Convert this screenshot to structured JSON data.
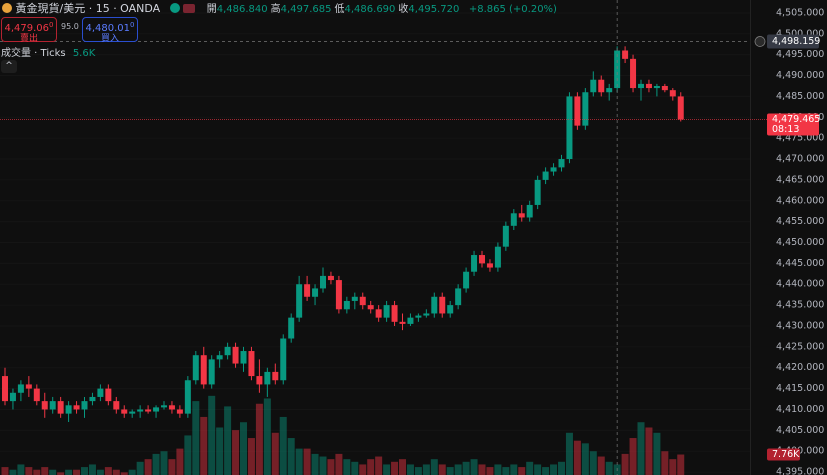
{
  "header": {
    "symbol": "黃金現貨/美元 · 15 · OANDA",
    "ohlc": [
      {
        "label": "開",
        "value": "4,486.840"
      },
      {
        "label": "高",
        "value": "4,497.685"
      },
      {
        "label": "低",
        "value": "4,486.690"
      },
      {
        "label": "收",
        "value": "4,495.720"
      }
    ],
    "change": "+8.865 (+0.20%)",
    "sell": {
      "price": "4,479.06",
      "sup": "0",
      "label": "賣出"
    },
    "spread": "95.0",
    "buy": {
      "price": "4,480.01",
      "sup": "0",
      "label": "買入"
    },
    "volume_title": "成交量 · Ticks",
    "volume_value": "5.6K"
  },
  "chart_data": {
    "type": "candlestick",
    "up_color": "#089981",
    "down_color": "#f23645",
    "ylim": [
      4394.3,
      4508.1
    ],
    "yticks": [
      {
        "value": 4505,
        "label": "4,505.000"
      },
      {
        "value": 4500,
        "label": "4,500.000"
      },
      {
        "value": 4495,
        "label": "4,495.000"
      },
      {
        "value": 4490,
        "label": "4,490.000"
      },
      {
        "value": 4485,
        "label": "4,485.000"
      },
      {
        "value": 4480,
        "label": "4,480.000"
      },
      {
        "value": 4475,
        "label": "4,475.000"
      },
      {
        "value": 4470,
        "label": "4,470.000"
      },
      {
        "value": 4465,
        "label": "4,465.000"
      },
      {
        "value": 4460,
        "label": "4,460.000"
      },
      {
        "value": 4455,
        "label": "4,455.000"
      },
      {
        "value": 4450,
        "label": "4,450.000"
      },
      {
        "value": 4445,
        "label": "4,445.000"
      },
      {
        "value": 4440,
        "label": "4,440.000"
      },
      {
        "value": 4435,
        "label": "4,435.000"
      },
      {
        "value": 4430,
        "label": "4,430.000"
      },
      {
        "value": 4425,
        "label": "4,425.000"
      },
      {
        "value": 4420,
        "label": "4,420.000"
      },
      {
        "value": 4415,
        "label": "4,415.000"
      },
      {
        "value": 4410,
        "label": "4,410.000"
      },
      {
        "value": 4405,
        "label": "4,405.000"
      },
      {
        "value": 4400,
        "label": "4,400.000"
      },
      {
        "value": 4395,
        "label": "4,395.000"
      }
    ],
    "open": [
      4418,
      4412,
      4414,
      4416,
      4415,
      4412,
      4410,
      4412,
      4409,
      4411,
      4410,
      4412,
      4413,
      4415,
      4412,
      4410,
      4409,
      4409.5,
      4410,
      4409.5,
      4410.5,
      4411,
      4410,
      4409,
      4417,
      4423,
      4416,
      4422,
      4423,
      4425,
      4421,
      4424,
      4418,
      4416,
      4419,
      4417,
      4427,
      4432,
      4440,
      4437,
      4439,
      4442,
      4441,
      4434,
      4436,
      4437,
      4435,
      4434,
      4432,
      4435,
      4431,
      4430.5,
      4432,
      4432.5,
      4433,
      4437,
      4433,
      4435,
      4439,
      4443,
      4447,
      4445,
      4444,
      4449,
      4454,
      4457,
      4456,
      4459,
      4465,
      4467,
      4468,
      4470,
      4485,
      4478,
      4486,
      4489,
      4486,
      4487,
      4496,
      4494,
      4487,
      4488,
      4487,
      4487.5,
      4486.5,
      4485
    ],
    "high": [
      4420,
      4415,
      4417,
      4418,
      4416,
      4414,
      4413,
      4413,
      4412,
      4412,
      4413,
      4414,
      4416,
      4416,
      4413,
      4411,
      4410,
      4411,
      4411,
      4411,
      4412,
      4412,
      4411,
      4418,
      4424,
      4425,
      4423,
      4424,
      4426,
      4426,
      4425,
      4425,
      4422,
      4420,
      4421,
      4428,
      4433,
      4442,
      4442,
      4440,
      4444,
      4443,
      4442,
      4437,
      4438,
      4438,
      4436,
      4435,
      4436,
      4436,
      4433,
      4433,
      4433,
      4434,
      4438,
      4438,
      4436,
      4440,
      4444,
      4448,
      4448,
      4446,
      4450,
      4455,
      4458,
      4459,
      4460,
      4466,
      4468,
      4469,
      4471,
      4486,
      4486,
      4487,
      4491,
      4490,
      4488,
      4497,
      4497,
      4495,
      4489,
      4489,
      4488,
      4488,
      4487,
      4486
    ],
    "low": [
      4411,
      4410,
      4412,
      4413,
      4411,
      4408,
      4409,
      4408,
      4407,
      4409,
      4408,
      4411,
      4412,
      4411,
      4409,
      4408,
      4408,
      4408,
      4409,
      4408,
      4410,
      4409,
      4408,
      4408,
      4416,
      4415,
      4415,
      4420,
      4422,
      4420,
      4419,
      4417,
      4414,
      4413,
      4416,
      4416,
      4426,
      4431,
      4436,
      4435,
      4438,
      4440,
      4433,
      4433,
      4434,
      4434,
      4433,
      4431,
      4431,
      4430,
      4429,
      4430,
      4431,
      4432,
      4432,
      4432,
      4432,
      4434,
      4438,
      4442,
      4444,
      4443,
      4443,
      4448,
      4453,
      4455,
      4455,
      4458,
      4464,
      4466,
      4467,
      4469,
      4477,
      4477,
      4485,
      4485,
      4484,
      4486,
      4493,
      4486,
      4484,
      4486,
      4485,
      4486,
      4484,
      4479
    ],
    "close": [
      4412,
      4414,
      4416,
      4415,
      4412,
      4410,
      4412,
      4409,
      4411,
      4410,
      4412,
      4413,
      4415,
      4412,
      4410,
      4409,
      4409.5,
      4410,
      4409.5,
      4410.5,
      4411,
      4410,
      4409,
      4417,
      4423,
      4416,
      4422,
      4423,
      4425,
      4421,
      4424,
      4418,
      4416,
      4419,
      4417,
      4427,
      4432,
      4440,
      4437,
      4439,
      4442,
      4441,
      4434,
      4436,
      4437,
      4435,
      4434,
      4432,
      4435,
      4431,
      4430.5,
      4432,
      4432.5,
      4433,
      4437,
      4433,
      4435,
      4439,
      4443,
      4447,
      4445,
      4444,
      4449,
      4454,
      4457,
      4456,
      4459,
      4465,
      4467,
      4468,
      4470,
      4485,
      4478,
      4486,
      4489,
      4486,
      4487,
      4496,
      4494,
      4487,
      4488,
      4487,
      4487.5,
      4486.5,
      4485,
      4479.465
    ],
    "last_price_label": "4,479.465",
    "countdown": "08:13",
    "crosshair": {
      "index": 77,
      "value": 4498.159,
      "label": "4,498.159"
    },
    "volume": {
      "ylim": [
        0,
        180
      ],
      "values": [
        3,
        2,
        4,
        3,
        2,
        3,
        2,
        1,
        2,
        2,
        3,
        4,
        2,
        3,
        2,
        1,
        2,
        5,
        6,
        8,
        9,
        6,
        10,
        15,
        28,
        22,
        30,
        18,
        26,
        17,
        20,
        14,
        27,
        29,
        16,
        22,
        14,
        10,
        10,
        8,
        7,
        6,
        8,
        6,
        5,
        4,
        6,
        7,
        4,
        5,
        6,
        4,
        3,
        4,
        6,
        4,
        3,
        4,
        5,
        6,
        4,
        3,
        4,
        3,
        4,
        3,
        5,
        4,
        3,
        4,
        5,
        16,
        13,
        12,
        9,
        7,
        5,
        4,
        8,
        14,
        20,
        18,
        16,
        9,
        6,
        7.76
      ],
      "last_label": "7.76K"
    }
  }
}
